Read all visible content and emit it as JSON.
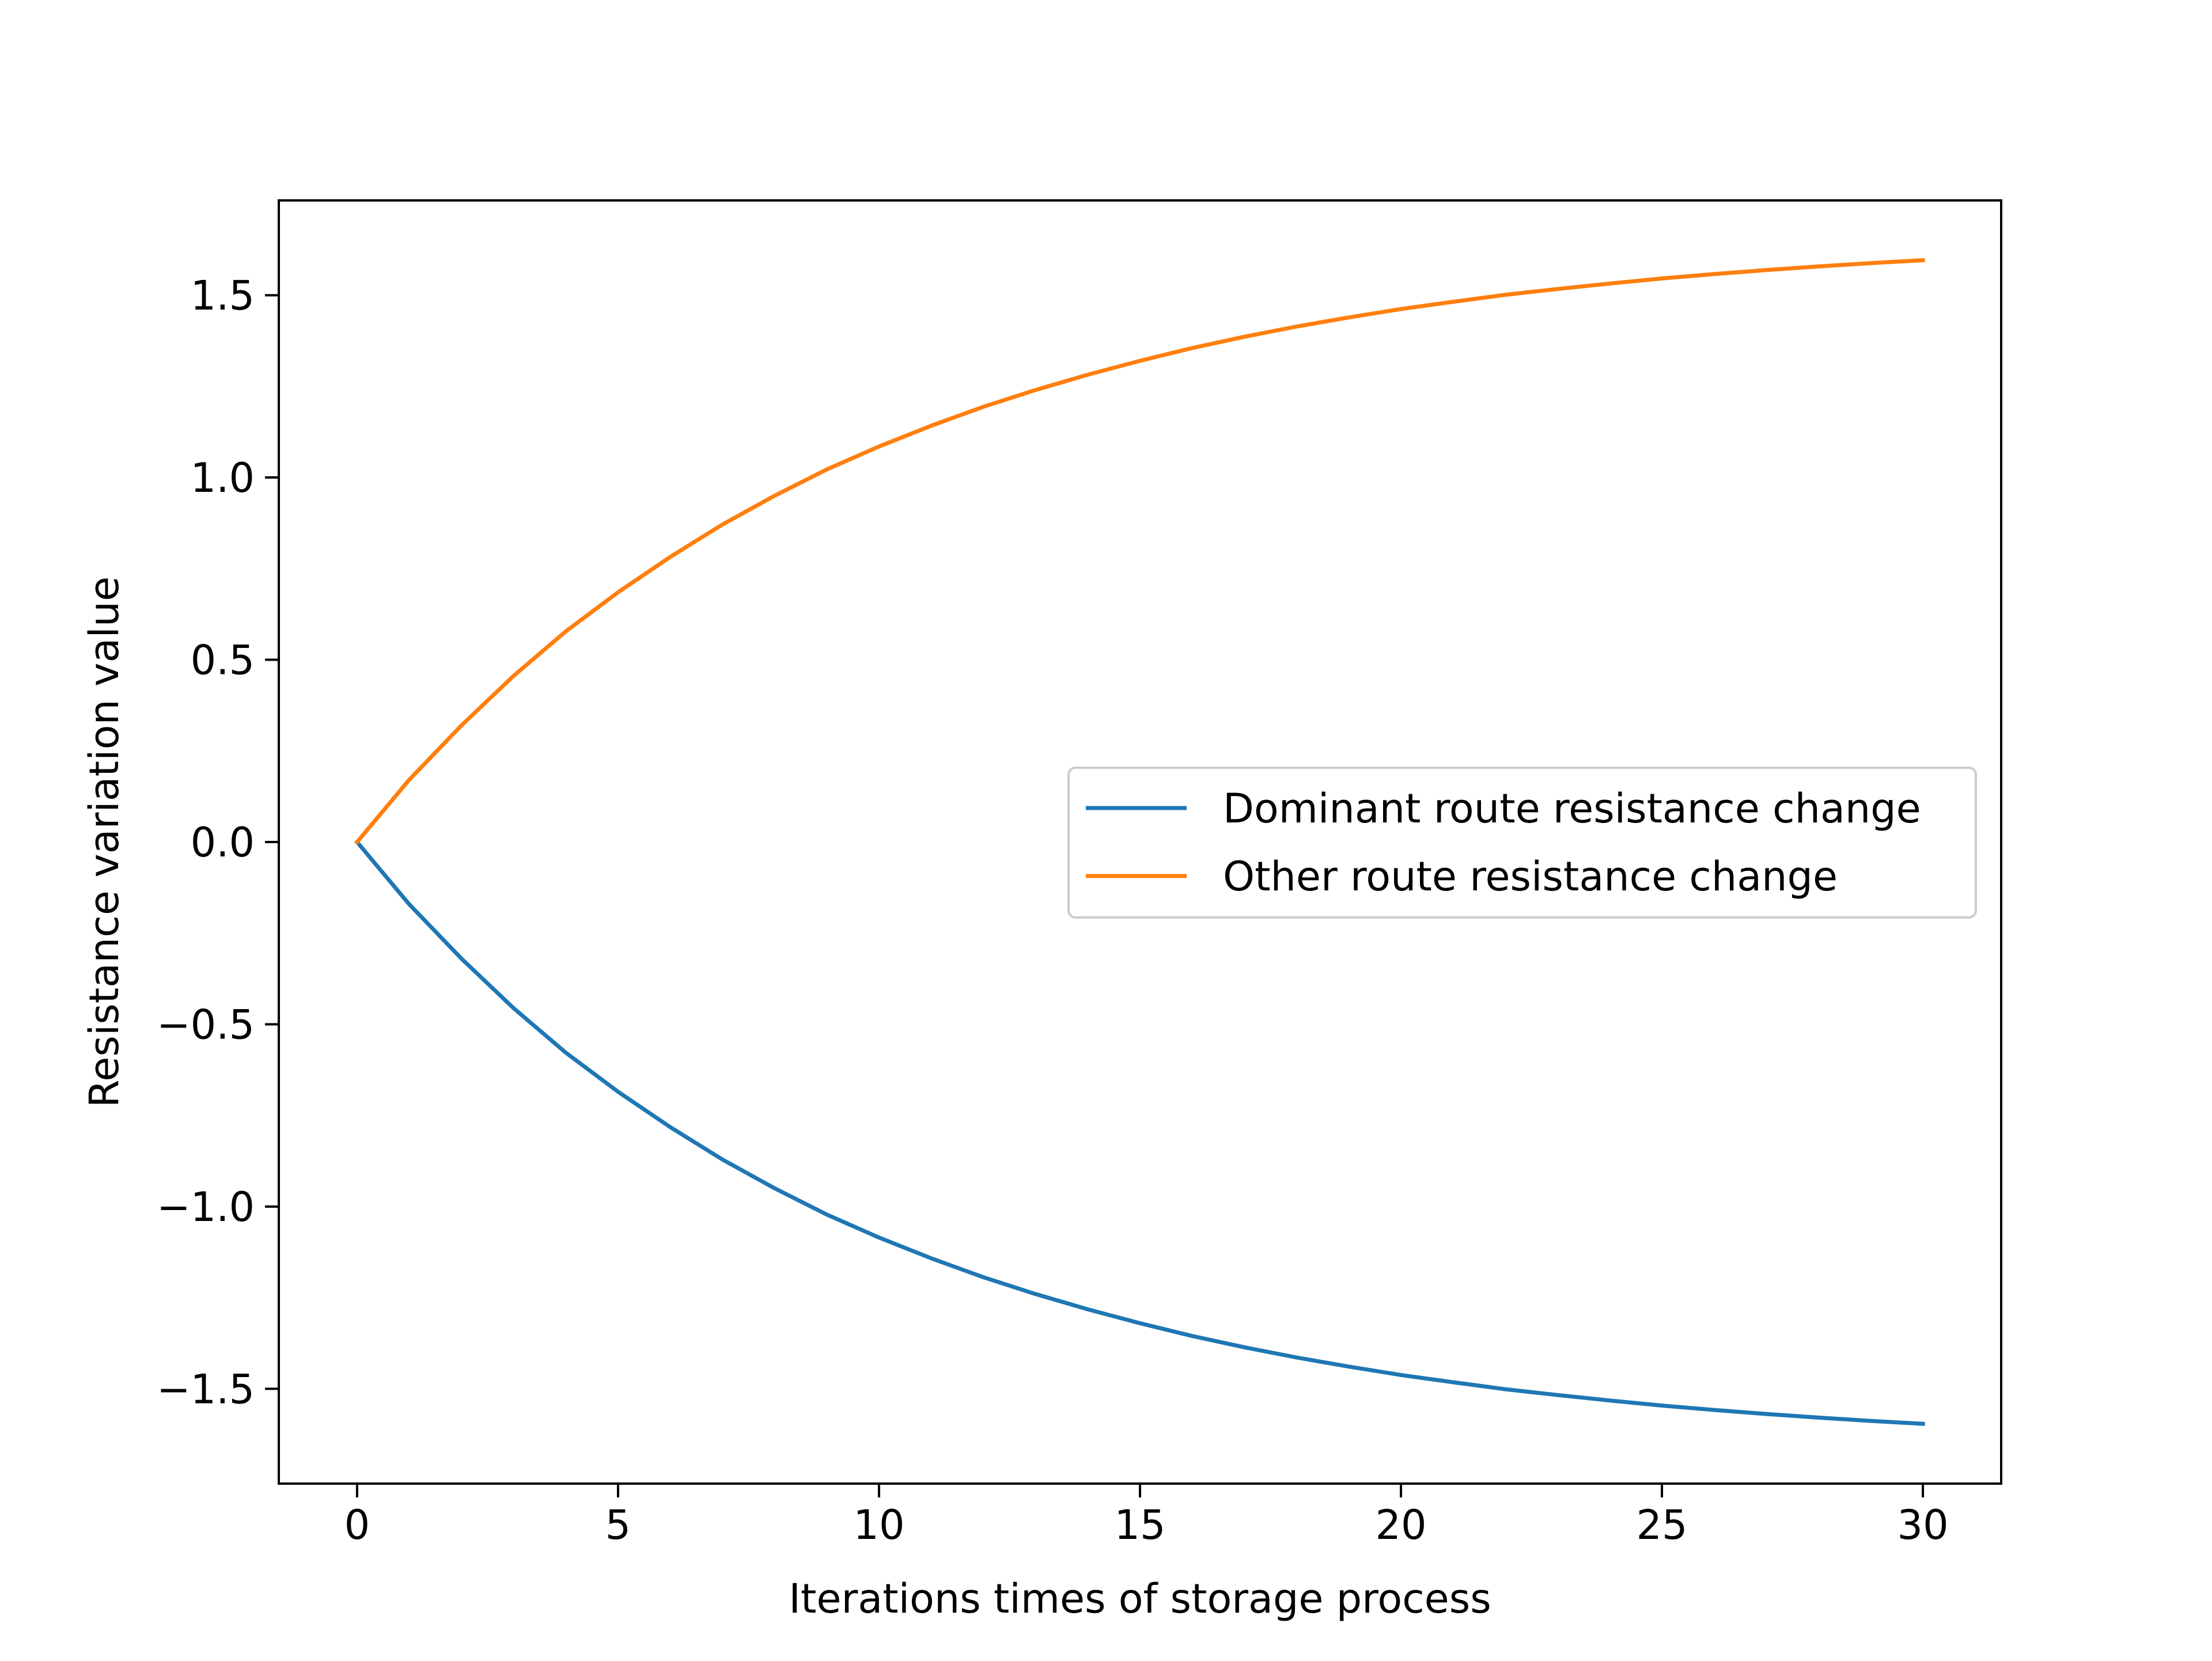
{
  "chart_data": {
    "type": "line",
    "title": "",
    "xlabel": "Iterations times of storage process",
    "ylabel": "Resistance variation value",
    "xlim": [
      -1.5,
      31.5
    ],
    "ylim": [
      -1.76,
      1.76
    ],
    "x_ticks": [
      0,
      5,
      10,
      15,
      20,
      25,
      30
    ],
    "x_tick_labels": [
      "0",
      "5",
      "10",
      "15",
      "20",
      "25",
      "30"
    ],
    "y_ticks": [
      1.5,
      1.0,
      0.5,
      0.0,
      -0.5,
      -1.0,
      -1.5
    ],
    "y_tick_labels": [
      "1.5",
      "1.0",
      "0.5",
      "0.0",
      "−0.5",
      "−1.0",
      "−1.5"
    ],
    "grid": false,
    "legend_position": "center-right",
    "x": [
      0,
      1,
      2,
      3,
      4,
      5,
      6,
      7,
      8,
      9,
      10,
      11,
      12,
      13,
      14,
      15,
      16,
      17,
      18,
      19,
      20,
      21,
      22,
      23,
      24,
      25,
      26,
      27,
      28,
      29,
      30
    ],
    "series": [
      {
        "name": "Dominant route resistance change",
        "color": "#1f77b4",
        "values": [
          0.0,
          -0.171,
          -0.32,
          -0.456,
          -0.578,
          -0.685,
          -0.782,
          -0.871,
          -0.95,
          -1.022,
          -1.085,
          -1.142,
          -1.194,
          -1.24,
          -1.282,
          -1.32,
          -1.355,
          -1.386,
          -1.414,
          -1.439,
          -1.462,
          -1.482,
          -1.501,
          -1.517,
          -1.532,
          -1.546,
          -1.558,
          -1.569,
          -1.579,
          -1.588,
          -1.596
        ]
      },
      {
        "name": "Other route resistance change",
        "color": "#ff7f0e",
        "values": [
          0.0,
          0.171,
          0.32,
          0.456,
          0.578,
          0.685,
          0.782,
          0.871,
          0.95,
          1.022,
          1.085,
          1.142,
          1.194,
          1.24,
          1.282,
          1.32,
          1.355,
          1.386,
          1.414,
          1.439,
          1.462,
          1.482,
          1.501,
          1.517,
          1.532,
          1.546,
          1.558,
          1.569,
          1.579,
          1.588,
          1.596
        ]
      }
    ]
  }
}
